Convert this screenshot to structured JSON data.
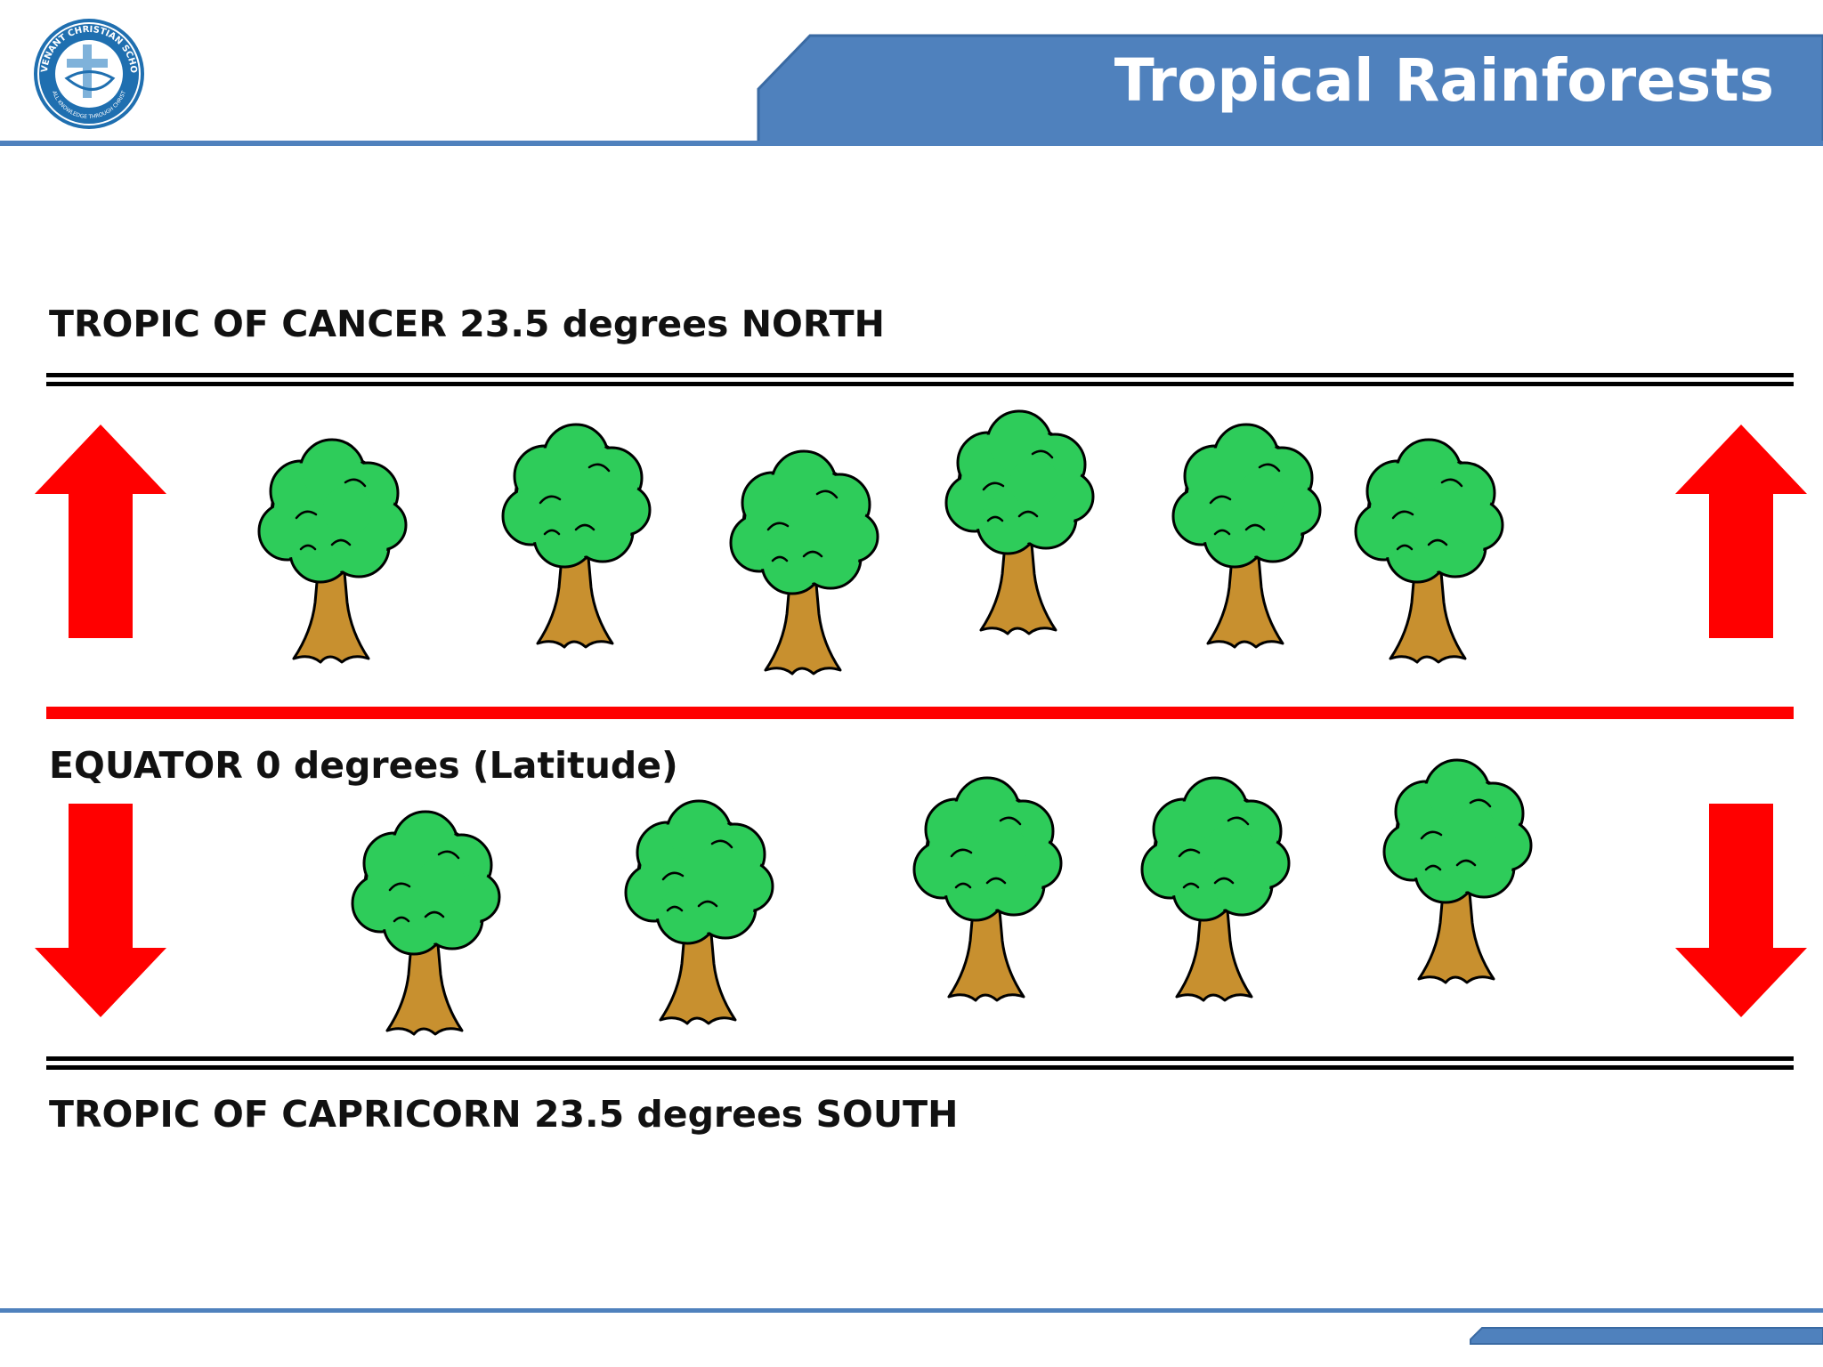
{
  "header": {
    "title": "Tropical Rainforests",
    "accent_color": "#4f81bd",
    "logo": {
      "icon": "school-crest-icon",
      "text_top": "COVENANT CHRISTIAN SCHOOL",
      "text_bottom": "ALL KNOWLEDGE THROUGH CHRIST"
    }
  },
  "diagram": {
    "tropic_of_cancer_label": "TROPIC OF CANCER 23.5 degrees NORTH",
    "equator_label": "EQUATOR 0 degrees (Latitude)",
    "tropic_of_capricorn_label": "TROPIC OF CAPRICORN 23.5 degrees SOUTH",
    "equator_color": "#ff0000",
    "arrow_color": "#ff0000",
    "tree_canopy_color": "#2ecc5a",
    "tree_trunk_color": "#c8902f",
    "arrows": [
      "north-arrow-icon",
      "north-arrow-icon",
      "south-arrow-icon",
      "south-arrow-icon"
    ],
    "tree_icon": "tree-icon"
  }
}
